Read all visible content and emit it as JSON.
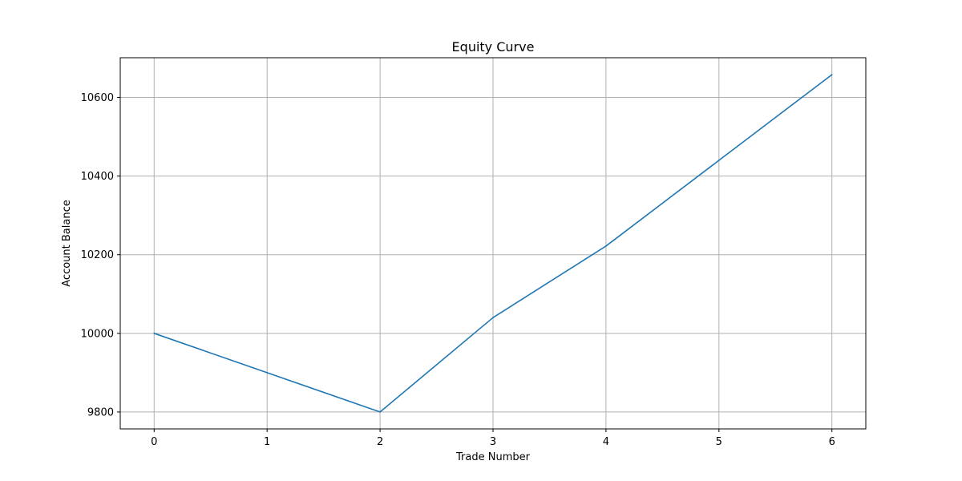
{
  "chart_data": {
    "type": "line",
    "title": "Equity Curve",
    "xlabel": "Trade Number",
    "ylabel": "Account Balance",
    "x": [
      0,
      1,
      2,
      3,
      4,
      5,
      6
    ],
    "series": [
      {
        "values": [
          10000,
          9900,
          9800,
          10040,
          10222,
          10440,
          10658
        ],
        "color": "#1f77b4"
      }
    ],
    "xlim": [
      -0.3,
      6.3
    ],
    "ylim": [
      9757,
      10701
    ],
    "xticks": [
      0,
      1,
      2,
      3,
      4,
      5,
      6
    ],
    "yticks": [
      9800,
      10000,
      10200,
      10400,
      10600
    ],
    "grid": true,
    "legend": "none"
  }
}
